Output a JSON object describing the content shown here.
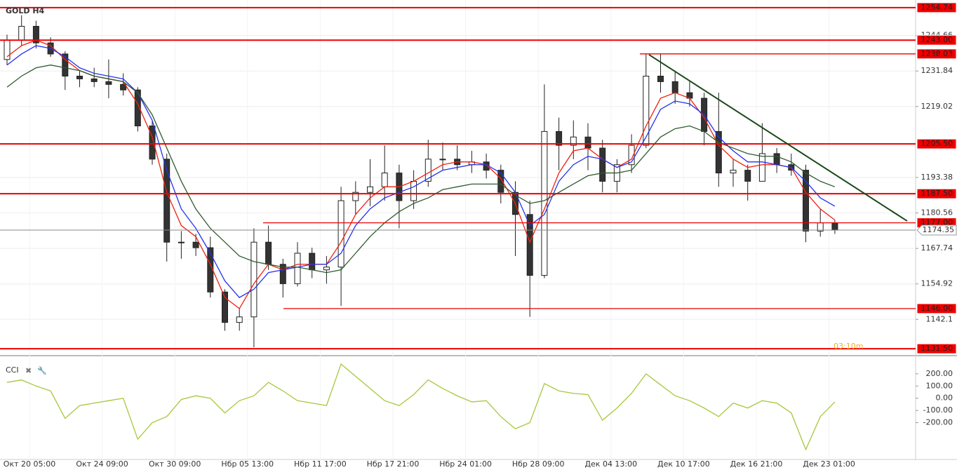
{
  "chart_data": {
    "type": "candlestick",
    "title": "GOLD H4",
    "countdown": "03:10m",
    "ylim": [
      1129.5,
      1257.5
    ],
    "yticks": [
      1244.66,
      1231.84,
      1219.02,
      1193.38,
      1180.56,
      1167.74,
      1154.92,
      1142.1
    ],
    "grid": true,
    "x_labels": [
      "Окт 20 05:00",
      "Окт 24 09:00",
      "Окт 30 09:00",
      "Нбр 05 13:00",
      "Нбр 11 17:00",
      "Нбр 17 21:00",
      "Нбр 24 01:00",
      "Нбр 28 09:00",
      "Дек 04 13:00",
      "Дек 10 17:00",
      "Дек 16 21:00",
      "Дек 23 01:00"
    ],
    "open": [
      1236,
      1243,
      1248,
      1242,
      1238,
      1230,
      1229,
      1228,
      1227,
      1225,
      1212,
      1200,
      1170,
      1170,
      1168,
      1152,
      1141,
      1143,
      1170,
      1162,
      1155,
      1166,
      1160,
      1161,
      1185,
      1188,
      1190,
      1195,
      1185,
      1192,
      1200,
      1200,
      1198,
      1199,
      1196,
      1188,
      1180,
      1158,
      1210,
      1205,
      1208,
      1204,
      1192,
      1198,
      1205,
      1230,
      1228,
      1224,
      1222,
      1210,
      1195,
      1196,
      1192,
      1202,
      1198,
      1196,
      1174,
      1177
    ],
    "high": [
      1245,
      1252,
      1250,
      1244,
      1239,
      1232,
      1233,
      1236,
      1231,
      1226,
      1214,
      1202,
      1174,
      1173,
      1172,
      1153,
      1146,
      1175,
      1176,
      1164,
      1170,
      1168,
      1165,
      1190,
      1192,
      1200,
      1205,
      1198,
      1196,
      1207,
      1206,
      1205,
      1203,
      1202,
      1198,
      1192,
      1185,
      1227,
      1215,
      1214,
      1213,
      1207,
      1200,
      1209,
      1238.03,
      1238,
      1232,
      1228,
      1224,
      1224,
      1200,
      1198,
      1213,
      1204,
      1202,
      1198,
      1182,
      1178
    ],
    "low": [
      1234,
      1241,
      1240,
      1237,
      1225,
      1226,
      1226,
      1222,
      1223,
      1210,
      1198,
      1163,
      1164,
      1165,
      1150,
      1138,
      1138,
      1132,
      1160,
      1150,
      1154,
      1157,
      1155,
      1147,
      1180,
      1183,
      1185,
      1175,
      1182,
      1190,
      1196,
      1196,
      1195,
      1193,
      1184,
      1165,
      1143,
      1157,
      1196,
      1200,
      1196,
      1188,
      1188,
      1195,
      1204,
      1224,
      1220,
      1219,
      1205,
      1190,
      1190,
      1185,
      1192,
      1195,
      1194,
      1170,
      1172,
      1173
    ],
    "close": [
      1243,
      1248,
      1242,
      1238,
      1230,
      1229,
      1228,
      1227,
      1225,
      1212,
      1200,
      1170,
      1170,
      1168,
      1152,
      1141,
      1143,
      1170,
      1162,
      1155,
      1166,
      1160,
      1161,
      1185,
      1188,
      1190,
      1195,
      1185,
      1192,
      1200,
      1200,
      1198,
      1199,
      1196,
      1188,
      1180,
      1158,
      1210,
      1205,
      1208,
      1204,
      1192,
      1198,
      1205,
      1230,
      1228,
      1224,
      1222,
      1210,
      1195,
      1196,
      1192,
      1202,
      1198,
      1196,
      1174,
      1177,
      1174.35
    ],
    "series": [
      {
        "color": "#ee2211",
        "values": [
          1237,
          1241,
          1243,
          1241,
          1236,
          1232,
          1230,
          1229,
          1228,
          1220,
          1208,
          1188,
          1176,
          1172,
          1162,
          1150,
          1146,
          1155,
          1162,
          1160,
          1162,
          1162,
          1162,
          1170,
          1180,
          1186,
          1190,
          1190,
          1192,
          1195,
          1198,
          1199,
          1199,
          1198,
          1193,
          1184,
          1170,
          1182,
          1195,
          1203,
          1204,
          1200,
          1197,
          1200,
          1212,
          1222,
          1224,
          1222,
          1215,
          1205,
          1200,
          1197,
          1198,
          1198,
          1197,
          1188,
          1182,
          1178
        ]
      },
      {
        "color": "#2233ee",
        "values": [
          1234,
          1238,
          1241,
          1240,
          1237,
          1233,
          1231,
          1230,
          1229,
          1224,
          1214,
          1196,
          1182,
          1175,
          1166,
          1156,
          1150,
          1153,
          1159,
          1160,
          1161,
          1162,
          1162,
          1166,
          1176,
          1182,
          1186,
          1188,
          1190,
          1193,
          1196,
          1197,
          1198,
          1198,
          1195,
          1188,
          1176,
          1180,
          1192,
          1198,
          1201,
          1200,
          1197,
          1199,
          1208,
          1218,
          1221,
          1220,
          1216,
          1208,
          1203,
          1199,
          1199,
          1198,
          1197,
          1192,
          1186,
          1183
        ]
      },
      {
        "color": "#2f5a2f",
        "values": [
          1226,
          1230,
          1233,
          1234,
          1233,
          1232,
          1230,
          1229,
          1228,
          1224,
          1216,
          1204,
          1192,
          1182,
          1175,
          1170,
          1165,
          1163,
          1162,
          1161,
          1161,
          1160,
          1159,
          1160,
          1166,
          1172,
          1177,
          1181,
          1184,
          1186,
          1189,
          1190,
          1191,
          1191,
          1191,
          1187,
          1184,
          1185,
          1188,
          1191,
          1194,
          1195,
          1195,
          1196,
          1202,
          1208,
          1211,
          1212,
          1210,
          1206,
          1204,
          1202,
          1201,
          1201,
          1199,
          1195,
          1192,
          1190
        ]
      }
    ],
    "trendline": {
      "color": "#1a4a1a",
      "values": [
        1237.75,
        1177.64
      ]
    },
    "level_color": "#ee0000",
    "levels": [
      1254.74,
      {
        "value": 1243,
        "label": "1243.00"
      },
      1238.03,
      {
        "value": 1205.5,
        "label": "1205.50"
      },
      {
        "value": 1187.5,
        "label": "1187.50"
      },
      {
        "value": 1177,
        "label": "1177.00"
      },
      {
        "value": 1146,
        "label": "1146.00"
      },
      {
        "value": 1131.5,
        "label": "1131.50"
      }
    ],
    "last_price": 1174.35,
    "indicator": {
      "title": "CCI",
      "color": "#a6c83c",
      "ylim": [
        -490,
        320
      ],
      "yticks": [
        {
          "value": 200,
          "label": "200.00"
        },
        {
          "value": 100,
          "label": "100.00"
        },
        {
          "value": 0,
          "label": "0.00"
        },
        {
          "value": -100,
          "label": "-100.00"
        },
        {
          "value": -200,
          "label": "-200.00"
        }
      ],
      "values": [
        130,
        150,
        100,
        60,
        -165,
        -60,
        -40,
        -20,
        0,
        -335,
        -200,
        -150,
        -10,
        20,
        0,
        -120,
        -20,
        20,
        130,
        60,
        -20,
        -40,
        -60,
        280,
        180,
        80,
        -20,
        -60,
        30,
        150,
        80,
        20,
        -30,
        -20,
        -150,
        -250,
        -200,
        120,
        60,
        40,
        30,
        -180,
        -80,
        40,
        200,
        110,
        20,
        -20,
        -80,
        -150,
        -40,
        -80,
        -20,
        -40,
        -120,
        -420,
        -150,
        -30
      ]
    }
  }
}
